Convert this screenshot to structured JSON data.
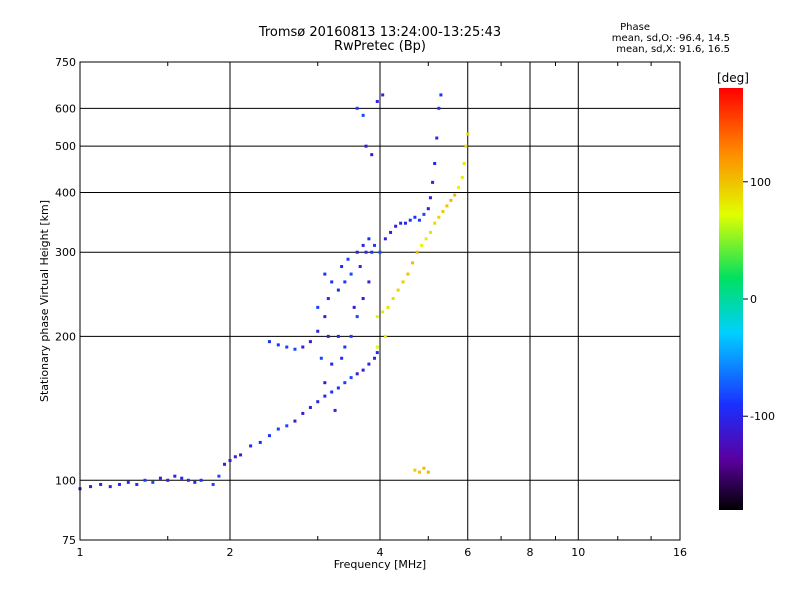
{
  "header": {
    "title_line1": "Tromsø 20160813 13:24:00-13:25:43",
    "title_line2": "RwPretec (Bp)",
    "stats_title": "Phase",
    "stats_o": "mean, sd,O: -96.4, 14.5",
    "stats_x": "mean, sd,X: 91.6, 16.5"
  },
  "colorbar": {
    "unit_label": "[deg]",
    "ticks": [
      "100",
      "0",
      "-100"
    ],
    "tick_values": [
      100,
      0,
      -100
    ],
    "range": [
      -180,
      180
    ]
  },
  "chart_data": {
    "type": "scatter",
    "title": "Tromsø 20160813 13:24:00-13:25:43",
    "subtitle": "RwPretec (Bp)",
    "xlabel": "Frequency [MHz]",
    "ylabel": "Stationary phase Virtual Height [km]",
    "xscale": "log",
    "yscale": "log",
    "xlim": [
      1,
      16
    ],
    "ylim": [
      75,
      750
    ],
    "x_ticks": [
      1,
      2,
      4,
      6,
      8,
      10,
      16
    ],
    "y_ticks": [
      75,
      100,
      200,
      300,
      400,
      500,
      600,
      750
    ],
    "grid": true,
    "series": [
      {
        "name": "O",
        "color_value_deg": -96.4,
        "points": [
          [
            1.0,
            96
          ],
          [
            1.05,
            97
          ],
          [
            1.1,
            98
          ],
          [
            1.15,
            97
          ],
          [
            1.2,
            98
          ],
          [
            1.25,
            99
          ],
          [
            1.3,
            98
          ],
          [
            1.35,
            100
          ],
          [
            1.4,
            99
          ],
          [
            1.45,
            101
          ],
          [
            1.5,
            100
          ],
          [
            1.55,
            102
          ],
          [
            1.6,
            101
          ],
          [
            1.65,
            100
          ],
          [
            1.7,
            99
          ],
          [
            1.75,
            100
          ],
          [
            1.85,
            98
          ],
          [
            1.9,
            102
          ],
          [
            1.95,
            108
          ],
          [
            2.0,
            110
          ],
          [
            2.05,
            112
          ],
          [
            2.1,
            113
          ],
          [
            2.2,
            118
          ],
          [
            2.3,
            120
          ],
          [
            2.4,
            124
          ],
          [
            2.5,
            128
          ],
          [
            2.6,
            130
          ],
          [
            2.7,
            133
          ],
          [
            2.8,
            138
          ],
          [
            2.9,
            142
          ],
          [
            3.0,
            146
          ],
          [
            3.1,
            150
          ],
          [
            3.2,
            153
          ],
          [
            3.3,
            156
          ],
          [
            3.4,
            160
          ],
          [
            3.5,
            164
          ],
          [
            3.6,
            167
          ],
          [
            3.7,
            170
          ],
          [
            3.8,
            175
          ],
          [
            3.9,
            180
          ],
          [
            3.95,
            185
          ],
          [
            2.4,
            195
          ],
          [
            2.5,
            192
          ],
          [
            2.6,
            190
          ],
          [
            2.7,
            188
          ],
          [
            2.8,
            190
          ],
          [
            2.9,
            195
          ],
          [
            3.0,
            205
          ],
          [
            3.1,
            220
          ],
          [
            3.15,
            240
          ],
          [
            3.2,
            260
          ],
          [
            3.1,
            270
          ],
          [
            3.0,
            230
          ],
          [
            3.05,
            180
          ],
          [
            3.1,
            160
          ],
          [
            3.15,
            200
          ],
          [
            3.2,
            175
          ],
          [
            3.25,
            140
          ],
          [
            3.3,
            250
          ],
          [
            3.35,
            280
          ],
          [
            3.4,
            260
          ],
          [
            3.45,
            290
          ],
          [
            3.5,
            270
          ],
          [
            3.55,
            230
          ],
          [
            3.6,
            300
          ],
          [
            3.65,
            280
          ],
          [
            3.7,
            310
          ],
          [
            3.75,
            300
          ],
          [
            3.8,
            320
          ],
          [
            3.85,
            300
          ],
          [
            3.9,
            310
          ],
          [
            4.0,
            300
          ],
          [
            4.1,
            320
          ],
          [
            4.2,
            330
          ],
          [
            4.3,
            340
          ],
          [
            4.4,
            345
          ],
          [
            4.5,
            345
          ],
          [
            4.6,
            350
          ],
          [
            4.7,
            355
          ],
          [
            4.8,
            350
          ],
          [
            4.9,
            360
          ],
          [
            5.0,
            370
          ],
          [
            5.05,
            390
          ],
          [
            5.1,
            420
          ],
          [
            5.15,
            460
          ],
          [
            5.2,
            520
          ],
          [
            5.25,
            600
          ],
          [
            5.3,
            640
          ],
          [
            3.6,
            600
          ],
          [
            3.7,
            580
          ],
          [
            3.75,
            500
          ],
          [
            3.85,
            480
          ],
          [
            3.95,
            620
          ],
          [
            4.05,
            640
          ],
          [
            3.3,
            200
          ],
          [
            3.35,
            180
          ],
          [
            3.4,
            190
          ],
          [
            3.5,
            200
          ],
          [
            3.6,
            220
          ],
          [
            3.7,
            240
          ],
          [
            3.8,
            260
          ]
        ]
      },
      {
        "name": "X",
        "color_value_deg": 91.6,
        "points": [
          [
            3.95,
            220
          ],
          [
            4.05,
            225
          ],
          [
            4.15,
            230
          ],
          [
            4.25,
            240
          ],
          [
            4.35,
            250
          ],
          [
            4.45,
            260
          ],
          [
            4.55,
            270
          ],
          [
            4.65,
            285
          ],
          [
            4.75,
            300
          ],
          [
            4.85,
            310
          ],
          [
            4.95,
            320
          ],
          [
            5.05,
            330
          ],
          [
            5.15,
            345
          ],
          [
            5.25,
            355
          ],
          [
            5.35,
            365
          ],
          [
            5.45,
            375
          ],
          [
            5.55,
            385
          ],
          [
            5.65,
            395
          ],
          [
            5.75,
            410
          ],
          [
            5.85,
            430
          ],
          [
            5.9,
            460
          ],
          [
            5.95,
            500
          ],
          [
            6.0,
            530
          ],
          [
            4.7,
            105
          ],
          [
            4.8,
            104
          ],
          [
            4.9,
            106
          ],
          [
            5.0,
            104
          ],
          [
            3.95,
            190
          ],
          [
            4.1,
            200
          ]
        ]
      }
    ]
  }
}
